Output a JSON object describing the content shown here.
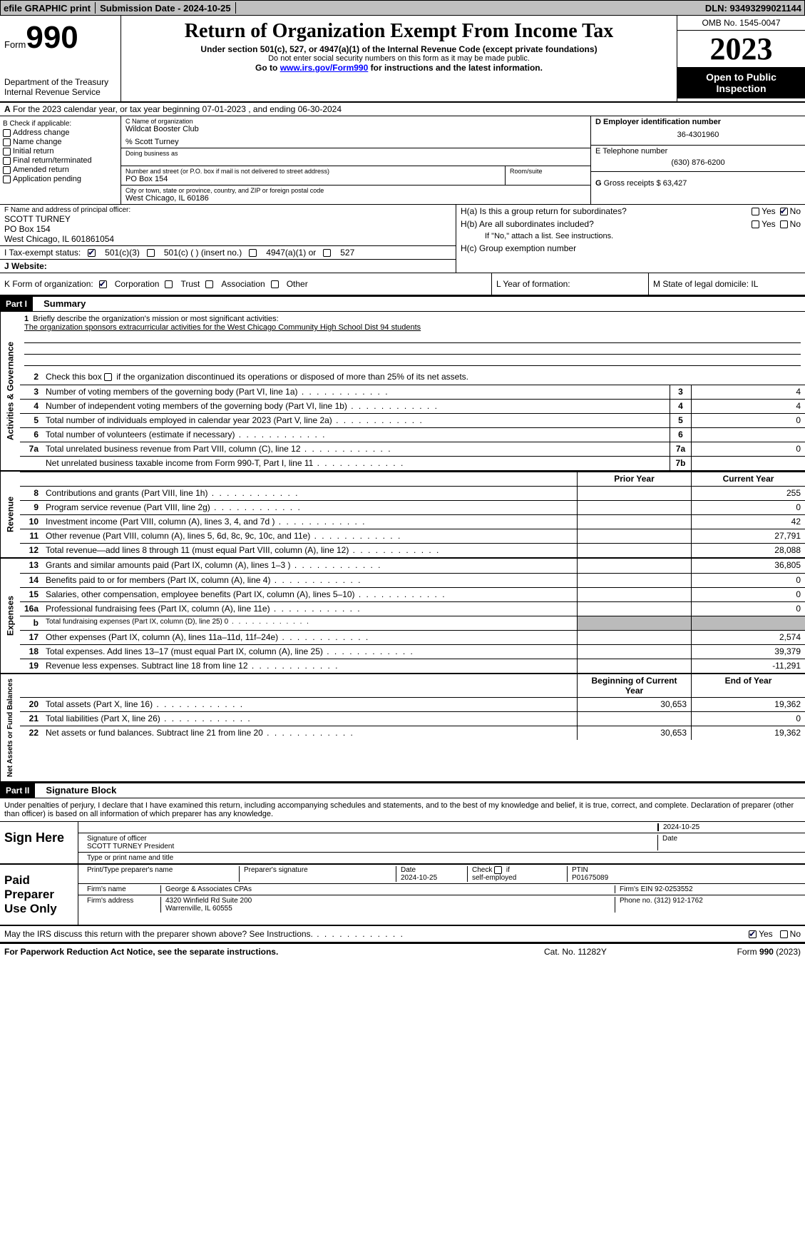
{
  "topbar": {
    "efile": "efile GRAPHIC print",
    "submission": "Submission Date - 2024-10-25",
    "dln": "DLN: 93493299021144"
  },
  "header": {
    "form_word": "Form",
    "form_no": "990",
    "dept": "Department of the Treasury",
    "irs": "Internal Revenue Service",
    "title": "Return of Organization Exempt From Income Tax",
    "sub": "Under section 501(c), 527, or 4947(a)(1) of the Internal Revenue Code (except private foundations)",
    "sub2": "Do not enter social security numbers on this form as it may be made public.",
    "sub3_pre": "Go to ",
    "sub3_link": "www.irs.gov/Form990",
    "sub3_post": " for instructions and the latest information.",
    "omb": "OMB No. 1545-0047",
    "year": "2023",
    "open": "Open to Public Inspection"
  },
  "row_a": {
    "label_a": "A",
    "text": "For the 2023 calendar year, or tax year beginning 07-01-2023    , and ending 06-30-2024"
  },
  "boxB": {
    "title": "B Check if applicable:",
    "items": [
      "Address change",
      "Name change",
      "Initial return",
      "Final return/terminated",
      "Amended return",
      "Application pending"
    ]
  },
  "boxC": {
    "name_label": "C Name of organization",
    "name": "Wildcat Booster Club",
    "care_of": "% Scott Turney",
    "dba_label": "Doing business as",
    "street_label": "Number and street (or P.O. box if mail is not delivered to street address)",
    "room_label": "Room/suite",
    "street": "PO Box 154",
    "city_label": "City or town, state or province, country, and ZIP or foreign postal code",
    "city": "West Chicago, IL  60186"
  },
  "boxD": {
    "label": "D Employer identification number",
    "value": "36-4301960"
  },
  "boxE": {
    "label": "E Telephone number",
    "value": "(630) 876-6200"
  },
  "boxG": {
    "label": "G",
    "text": "Gross receipts $ 63,427"
  },
  "boxF": {
    "label": "F  Name and address of principal officer:",
    "l1": "SCOTT TURNEY",
    "l2": "PO Box 154",
    "l3": "West Chicago, IL  601861054"
  },
  "boxH": {
    "ha": "H(a)  Is this a group return for subordinates?",
    "hb": "H(b)  Are all subordinates included?",
    "hb2": "If \"No,\" attach a list. See instructions.",
    "hc": "H(c)  Group exemption number",
    "yes": "Yes",
    "no": "No"
  },
  "taxexempt": {
    "label": "I   Tax-exempt status:",
    "o1": "501(c)(3)",
    "o2": "501(c) (  ) (insert no.)",
    "o3": "4947(a)(1) or",
    "o4": "527"
  },
  "website": {
    "label": "J   Website:"
  },
  "boxK": {
    "label": "K Form of organization:",
    "o1": "Corporation",
    "o2": "Trust",
    "o3": "Association",
    "o4": "Other"
  },
  "boxL": {
    "label": "L Year of formation:"
  },
  "boxM": {
    "label": "M State of legal domicile: IL"
  },
  "part1": {
    "label": "Part I",
    "title": "Summary"
  },
  "summary": {
    "gov_label": "Activities & Governance",
    "rev_label": "Revenue",
    "exp_label": "Expenses",
    "net_label": "Net Assets or Fund Balances",
    "line1_label": "Briefly describe the organization's mission or most significant activities:",
    "line1_text": "The organization sponsors extracurricular activities for the West Chicago Community High School Dist 94 students",
    "line2": "Check this box      if the organization discontinued its operations or disposed of more than 25% of its net assets.",
    "lines_gov": [
      {
        "n": "3",
        "d": "Number of voting members of the governing body (Part VI, line 1a)",
        "box": "3",
        "v": "4"
      },
      {
        "n": "4",
        "d": "Number of independent voting members of the governing body (Part VI, line 1b)",
        "box": "4",
        "v": "4"
      },
      {
        "n": "5",
        "d": "Total number of individuals employed in calendar year 2023 (Part V, line 2a)",
        "box": "5",
        "v": "0"
      },
      {
        "n": "6",
        "d": "Total number of volunteers (estimate if necessary)",
        "box": "6",
        "v": ""
      },
      {
        "n": "7a",
        "d": "Total unrelated business revenue from Part VIII, column (C), line 12",
        "box": "7a",
        "v": "0"
      },
      {
        "n": "",
        "d": "Net unrelated business taxable income from Form 990-T, Part I, line 11",
        "box": "7b",
        "v": ""
      }
    ],
    "hdr_prior": "Prior Year",
    "hdr_curr": "Current Year",
    "lines_rev": [
      {
        "n": "8",
        "d": "Contributions and grants (Part VIII, line 1h)",
        "p": "",
        "c": "255"
      },
      {
        "n": "9",
        "d": "Program service revenue (Part VIII, line 2g)",
        "p": "",
        "c": "0"
      },
      {
        "n": "10",
        "d": "Investment income (Part VIII, column (A), lines 3, 4, and 7d )",
        "p": "",
        "c": "42"
      },
      {
        "n": "11",
        "d": "Other revenue (Part VIII, column (A), lines 5, 6d, 8c, 9c, 10c, and 11e)",
        "p": "",
        "c": "27,791"
      },
      {
        "n": "12",
        "d": "Total revenue—add lines 8 through 11 (must equal Part VIII, column (A), line 12)",
        "p": "",
        "c": "28,088"
      }
    ],
    "lines_exp": [
      {
        "n": "13",
        "d": "Grants and similar amounts paid (Part IX, column (A), lines 1–3 )",
        "p": "",
        "c": "36,805"
      },
      {
        "n": "14",
        "d": "Benefits paid to or for members (Part IX, column (A), line 4)",
        "p": "",
        "c": "0"
      },
      {
        "n": "15",
        "d": "Salaries, other compensation, employee benefits (Part IX, column (A), lines 5–10)",
        "p": "",
        "c": "0"
      },
      {
        "n": "16a",
        "d": "Professional fundraising fees (Part IX, column (A), line 11e)",
        "p": "",
        "c": "0"
      },
      {
        "n": "b",
        "d": "Total fundraising expenses (Part IX, column (D), line 25) 0",
        "p": "shade",
        "c": "shade"
      },
      {
        "n": "17",
        "d": "Other expenses (Part IX, column (A), lines 11a–11d, 11f–24e)",
        "p": "",
        "c": "2,574"
      },
      {
        "n": "18",
        "d": "Total expenses. Add lines 13–17 (must equal Part IX, column (A), line 25)",
        "p": "",
        "c": "39,379"
      },
      {
        "n": "19",
        "d": "Revenue less expenses. Subtract line 18 from line 12",
        "p": "",
        "c": "-11,291"
      }
    ],
    "hdr_begin": "Beginning of Current Year",
    "hdr_end": "End of Year",
    "lines_net": [
      {
        "n": "20",
        "d": "Total assets (Part X, line 16)",
        "p": "30,653",
        "c": "19,362"
      },
      {
        "n": "21",
        "d": "Total liabilities (Part X, line 26)",
        "p": "",
        "c": "0"
      },
      {
        "n": "22",
        "d": "Net assets or fund balances. Subtract line 21 from line 20",
        "p": "30,653",
        "c": "19,362"
      }
    ]
  },
  "part2": {
    "label": "Part II",
    "title": "Signature Block"
  },
  "sig": {
    "penalty": "Under penalties of perjury, I declare that I have examined this return, including accompanying schedules and statements, and to the best of my knowledge and belief, it is true, correct, and complete. Declaration of preparer (other than officer) is based on all information of which preparer has any knowledge.",
    "sign_here": "Sign Here",
    "date1": "2024-10-25",
    "sig_officer": "Signature of officer",
    "officer": "SCOTT TURNEY President",
    "type_name": "Type or print name and title",
    "date_lbl": "Date",
    "paid": "Paid Preparer Use Only",
    "prep_name_lbl": "Print/Type preparer's name",
    "prep_sig_lbl": "Preparer's signature",
    "date2_lbl": "Date",
    "date2": "2024-10-25",
    "self_emp": "Check       if self-employed",
    "ptin_lbl": "PTIN",
    "ptin": "P01675089",
    "firm_name_lbl": "Firm's name",
    "firm_name": "George & Associates CPAs",
    "firm_ein_lbl": "Firm's EIN",
    "firm_ein": "92-0253552",
    "firm_addr_lbl": "Firm's address",
    "firm_addr1": "4320 Winfield Rd Suite 200",
    "firm_addr2": "Warrenville, IL  60555",
    "phone_lbl": "Phone no.",
    "phone": "(312) 912-1762",
    "discuss": "May the IRS discuss this return with the preparer shown above? See Instructions.",
    "yes": "Yes",
    "no": "No"
  },
  "footer": {
    "left": "For Paperwork Reduction Act Notice, see the separate instructions.",
    "mid": "Cat. No. 11282Y",
    "right_pre": "Form ",
    "right_b": "990",
    "right_post": " (2023)"
  }
}
